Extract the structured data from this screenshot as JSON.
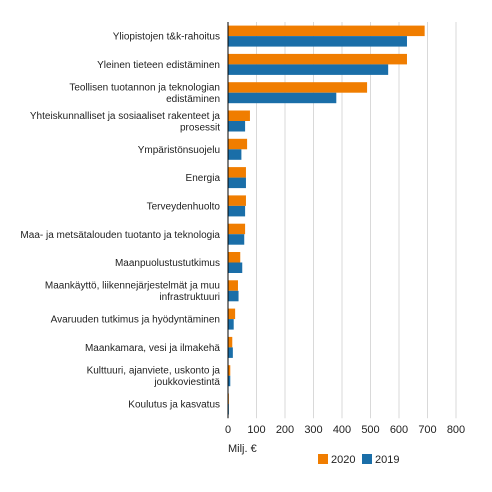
{
  "chart_data": {
    "type": "bar",
    "orientation": "horizontal",
    "categories": [
      "Yliopistojen t&k-rahoitus",
      "Yleinen tieteen edistäminen",
      "Teollisen tuotannon ja teknologian edistäminen",
      "Yhteiskunnalliset ja sosiaaliset rakenteet ja prosessit",
      "Ympäristönsuojelu",
      "Energia",
      "Terveydenhuolto",
      "Maa- ja metsätalouden tuotanto ja teknologia",
      "Maanpuolustustutkimus",
      "Maankäyttö, liikennejärjestelmät ja muu infrastruktuuri",
      "Avaruuden tutkimus ja hyödyntäminen",
      "Maankamara, vesi ja ilmakehä",
      "Kulttuuri, ajanviete, uskonto ja joukkoviestintä",
      "Koulutus ja kasvatus"
    ],
    "category_lines": [
      [
        "Yliopistojen t&k-rahoitus"
      ],
      [
        "Yleinen tieteen edistäminen"
      ],
      [
        "Teollisen tuotannon ja teknologian",
        "edistäminen"
      ],
      [
        "Yhteiskunnalliset ja sosiaaliset rakenteet ja",
        "prosessit"
      ],
      [
        "Ympäristönsuojelu"
      ],
      [
        "Energia"
      ],
      [
        "Terveydenhuolto"
      ],
      [
        "Maa- ja metsätalouden tuotanto ja teknologia"
      ],
      [
        "Maanpuolustustutkimus"
      ],
      [
        "Maankäyttö, liikennejärjestelmät ja muu",
        "infrastruktuuri"
      ],
      [
        "Avaruuden tutkimus ja hyödyntäminen"
      ],
      [
        "Maankamara, vesi ja ilmakehä"
      ],
      [
        "Kulttuuri, ajanviete, uskonto ja",
        "joukkoviestintä"
      ],
      [
        "Koulutus ja kasvatus"
      ]
    ],
    "series": [
      {
        "name": "2020",
        "color": "#f07d00",
        "values": [
          690,
          628,
          488,
          77,
          67,
          63,
          63,
          60,
          43,
          35,
          25,
          15,
          8,
          3
        ]
      },
      {
        "name": "2019",
        "color": "#1a6ea8",
        "values": [
          628,
          562,
          380,
          60,
          47,
          63,
          60,
          57,
          50,
          37,
          20,
          17,
          8,
          3
        ]
      }
    ],
    "xlabel": "Milj. €",
    "xlim": [
      0,
      800
    ],
    "xticks": [
      0,
      100,
      200,
      300,
      400,
      500,
      600,
      700,
      800
    ],
    "grid": "vertical",
    "legend": "bottom-right"
  }
}
